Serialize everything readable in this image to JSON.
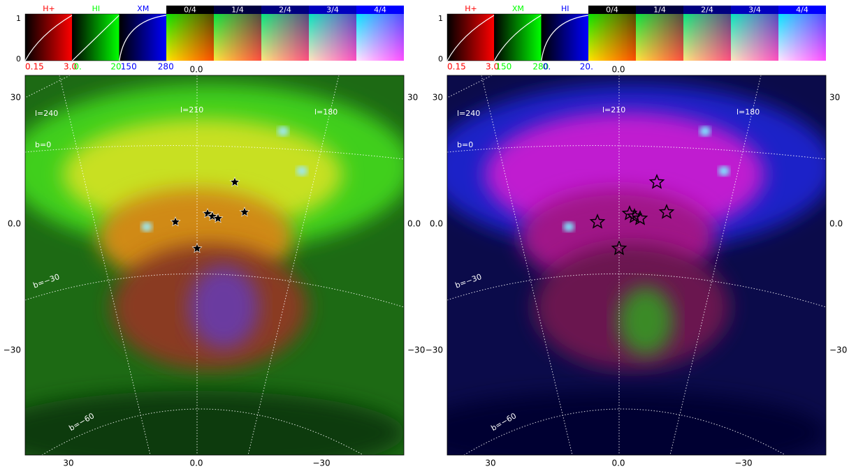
{
  "panels": [
    {
      "channels": [
        {
          "name": "H+",
          "color": "#ff0000",
          "range": [
            0.15,
            {
              "value": 3,
              "label": "3.0"
            }
          ]
        },
        {
          "name": "HI",
          "color": "#00ff00",
          "range": [
            {
              "value": 0,
              "label": "0."
            },
            {
              "value": 20,
              "label": "20."
            }
          ]
        },
        {
          "name": "XM",
          "color": "#0000ff",
          "range": [
            150,
            280
          ]
        }
      ]
    },
    {
      "channels": [
        {
          "name": "H+",
          "color": "#ff0000",
          "range": [
            0.15,
            {
              "value": 3,
              "label": "3.0"
            }
          ]
        },
        {
          "name": "XM",
          "color": "#00ff00",
          "range": [
            150,
            280
          ]
        },
        {
          "name": "HI",
          "color": "#0000ff",
          "range": [
            {
              "value": 0,
              "label": "0."
            },
            {
              "value": 20,
              "label": "20."
            }
          ]
        }
      ]
    }
  ],
  "mix_labels": [
    "0/4",
    "1/4",
    "2/4",
    "3/4",
    "4/4"
  ],
  "bar_ticks": [
    1,
    0
  ],
  "x_ticks": [
    30,
    {
      "value": 0,
      "label": "0.0"
    },
    {
      "value": -30,
      "label": "−30"
    }
  ],
  "y_ticks": [
    30,
    {
      "value": 0,
      "label": "0.0"
    },
    {
      "value": -30,
      "label": "−30"
    }
  ],
  "grid_labels": {
    "longitude": [
      "l=240",
      "l=210",
      "l=180"
    ],
    "latitude": [
      "b=0",
      "b=−30",
      "b=−60"
    ]
  }
}
